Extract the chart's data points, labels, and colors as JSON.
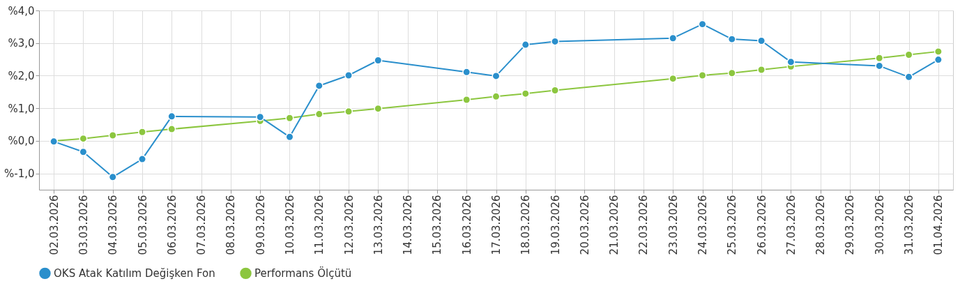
{
  "chart_data": {
    "type": "line",
    "categories": [
      "02.03.2026",
      "03.03.2026",
      "04.03.2026",
      "05.03.2026",
      "06.03.2026",
      "07.03.2026",
      "08.03.2026",
      "09.03.2026",
      "10.03.2026",
      "11.03.2026",
      "12.03.2026",
      "13.03.2026",
      "14.03.2026",
      "15.03.2026",
      "16.03.2026",
      "17.03.2026",
      "18.03.2026",
      "19.03.2026",
      "20.03.2026",
      "21.03.2026",
      "22.03.2026",
      "23.03.2026",
      "24.03.2026",
      "25.03.2026",
      "26.03.2026",
      "27.03.2026",
      "28.03.2026",
      "29.03.2026",
      "30.03.2026",
      "31.03.2026",
      "01.04.2026"
    ],
    "series": [
      {
        "name": "OKS Atak Katılım Değişken Fon",
        "color": "#2a8fcc",
        "values": [
          -0.02,
          -0.34,
          -1.11,
          -0.56,
          0.75,
          null,
          null,
          0.73,
          0.12,
          1.69,
          2.01,
          2.47,
          null,
          null,
          2.11,
          1.99,
          2.95,
          3.05,
          null,
          null,
          null,
          3.15,
          3.58,
          3.12,
          3.07,
          2.42,
          null,
          null,
          2.3,
          1.96,
          2.49
        ]
      },
      {
        "name": "Performans Ölçütü",
        "color": "#8cc63f",
        "values": [
          0.0,
          0.07,
          0.17,
          0.27,
          0.36,
          null,
          null,
          0.61,
          0.7,
          0.82,
          0.9,
          0.99,
          null,
          null,
          1.26,
          1.36,
          1.45,
          1.55,
          null,
          null,
          null,
          1.91,
          2.01,
          2.08,
          2.18,
          2.28,
          null,
          null,
          2.54,
          2.64,
          2.74
        ]
      }
    ],
    "ylim": [
      -1.5,
      4.0
    ],
    "yticks": [
      {
        "value": -1,
        "label": "%-1,0"
      },
      {
        "value": 0,
        "label": "%0,0"
      },
      {
        "value": 1,
        "label": "%1,0"
      },
      {
        "value": 2,
        "label": "%2,0"
      },
      {
        "value": 3,
        "label": "%3,0"
      },
      {
        "value": 4,
        "label": "%4,0"
      }
    ],
    "grid": true,
    "legend": "bottom",
    "marker": "circle",
    "line_style": "solid"
  }
}
